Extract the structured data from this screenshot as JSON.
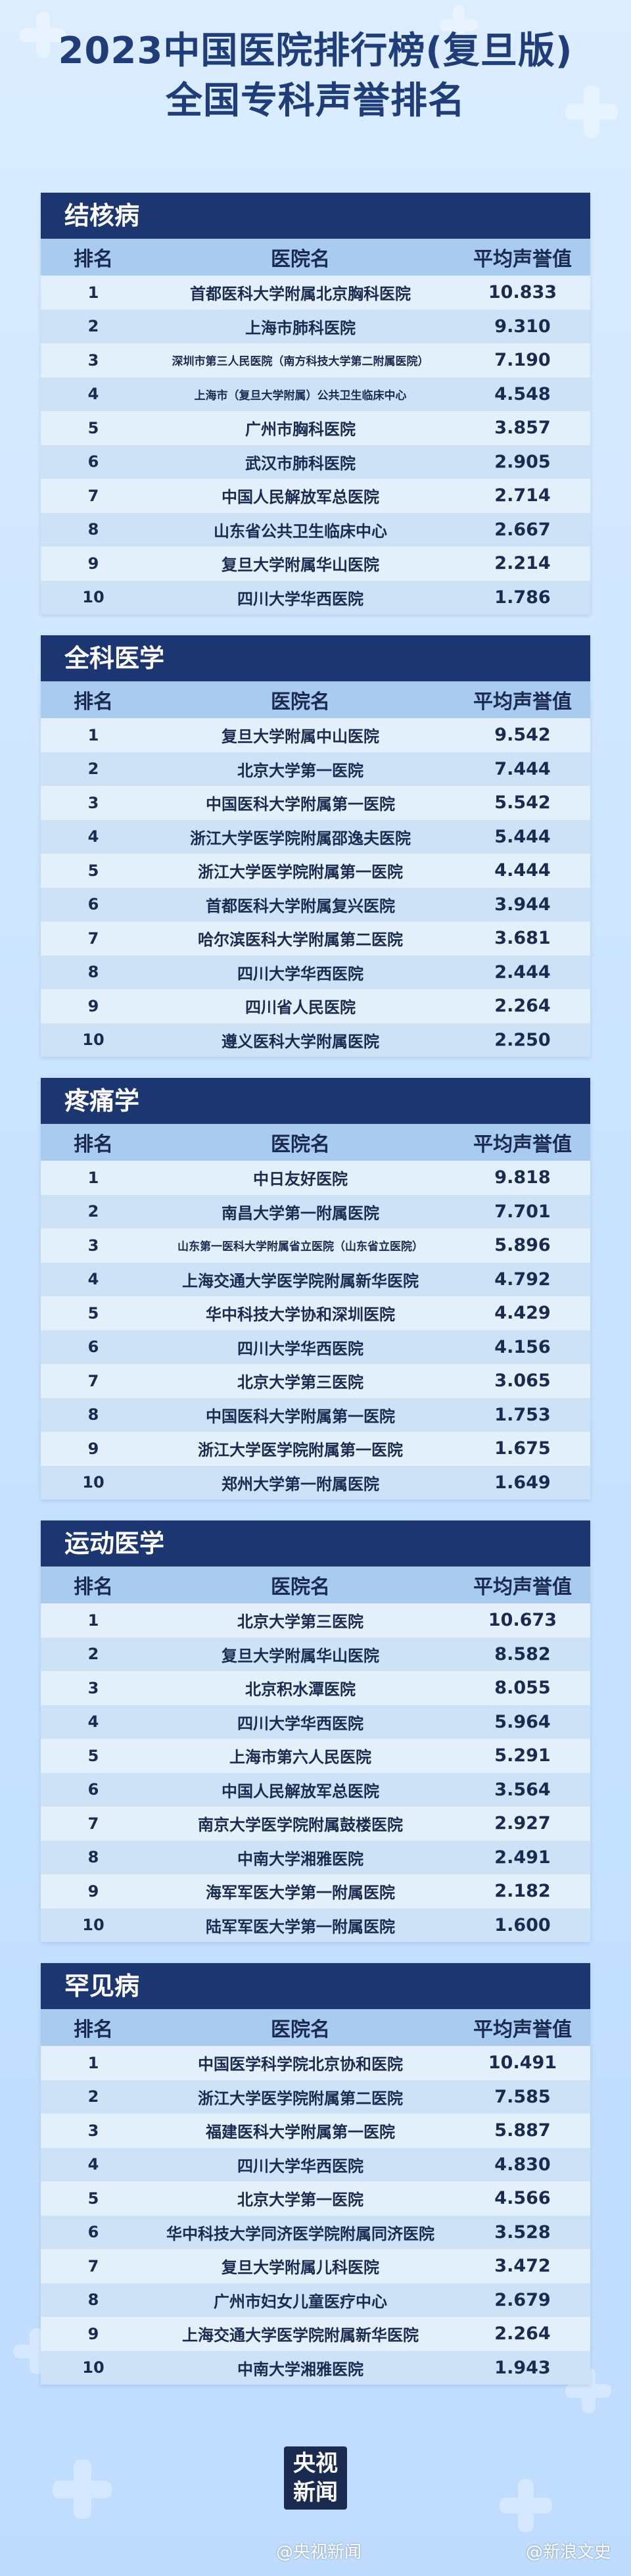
{
  "header": {
    "line1": "2023中国医院排行榜(复旦版)",
    "line2": "全国专科声誉排名"
  },
  "columns": {
    "rank": "排名",
    "hospital": "医院名",
    "score": "平均声誉值"
  },
  "sections": [
    {
      "title": "结核病",
      "rows": [
        {
          "rank": "1",
          "hospital": "首都医科大学附属北京胸科医院",
          "score": "10.833"
        },
        {
          "rank": "2",
          "hospital": "上海市肺科医院",
          "score": "9.310"
        },
        {
          "rank": "3",
          "hospital": "深圳市第三人民医院（南方科技大学第二附属医院）",
          "score": "7.190"
        },
        {
          "rank": "4",
          "hospital": "上海市（复旦大学附属）公共卫生临床中心",
          "score": "4.548"
        },
        {
          "rank": "5",
          "hospital": "广州市胸科医院",
          "score": "3.857"
        },
        {
          "rank": "6",
          "hospital": "武汉市肺科医院",
          "score": "2.905"
        },
        {
          "rank": "7",
          "hospital": "中国人民解放军总医院",
          "score": "2.714"
        },
        {
          "rank": "8",
          "hospital": "山东省公共卫生临床中心",
          "score": "2.667"
        },
        {
          "rank": "9",
          "hospital": "复旦大学附属华山医院",
          "score": "2.214"
        },
        {
          "rank": "10",
          "hospital": "四川大学华西医院",
          "score": "1.786"
        }
      ]
    },
    {
      "title": "全科医学",
      "rows": [
        {
          "rank": "1",
          "hospital": "复旦大学附属中山医院",
          "score": "9.542"
        },
        {
          "rank": "2",
          "hospital": "北京大学第一医院",
          "score": "7.444"
        },
        {
          "rank": "3",
          "hospital": "中国医科大学附属第一医院",
          "score": "5.542"
        },
        {
          "rank": "4",
          "hospital": "浙江大学医学院附属邵逸夫医院",
          "score": "5.444"
        },
        {
          "rank": "5",
          "hospital": "浙江大学医学院附属第一医院",
          "score": "4.444"
        },
        {
          "rank": "6",
          "hospital": "首都医科大学附属复兴医院",
          "score": "3.944"
        },
        {
          "rank": "7",
          "hospital": "哈尔滨医科大学附属第二医院",
          "score": "3.681"
        },
        {
          "rank": "8",
          "hospital": "四川大学华西医院",
          "score": "2.444"
        },
        {
          "rank": "9",
          "hospital": "四川省人民医院",
          "score": "2.264"
        },
        {
          "rank": "10",
          "hospital": "遵义医科大学附属医院",
          "score": "2.250"
        }
      ]
    },
    {
      "title": "疼痛学",
      "rows": [
        {
          "rank": "1",
          "hospital": "中日友好医院",
          "score": "9.818"
        },
        {
          "rank": "2",
          "hospital": "南昌大学第一附属医院",
          "score": "7.701"
        },
        {
          "rank": "3",
          "hospital": "山东第一医科大学附属省立医院（山东省立医院）",
          "score": "5.896"
        },
        {
          "rank": "4",
          "hospital": "上海交通大学医学院附属新华医院",
          "score": "4.792"
        },
        {
          "rank": "5",
          "hospital": "华中科技大学协和深圳医院",
          "score": "4.429"
        },
        {
          "rank": "6",
          "hospital": "四川大学华西医院",
          "score": "4.156"
        },
        {
          "rank": "7",
          "hospital": "北京大学第三医院",
          "score": "3.065"
        },
        {
          "rank": "8",
          "hospital": "中国医科大学附属第一医院",
          "score": "1.753"
        },
        {
          "rank": "9",
          "hospital": "浙江大学医学院附属第一医院",
          "score": "1.675"
        },
        {
          "rank": "10",
          "hospital": "郑州大学第一附属医院",
          "score": "1.649"
        }
      ]
    },
    {
      "title": "运动医学",
      "rows": [
        {
          "rank": "1",
          "hospital": "北京大学第三医院",
          "score": "10.673"
        },
        {
          "rank": "2",
          "hospital": "复旦大学附属华山医院",
          "score": "8.582"
        },
        {
          "rank": "3",
          "hospital": "北京积水潭医院",
          "score": "8.055"
        },
        {
          "rank": "4",
          "hospital": "四川大学华西医院",
          "score": "5.964"
        },
        {
          "rank": "5",
          "hospital": "上海市第六人民医院",
          "score": "5.291"
        },
        {
          "rank": "6",
          "hospital": "中国人民解放军总医院",
          "score": "3.564"
        },
        {
          "rank": "7",
          "hospital": "南京大学医学院附属鼓楼医院",
          "score": "2.927"
        },
        {
          "rank": "8",
          "hospital": "中南大学湘雅医院",
          "score": "2.491"
        },
        {
          "rank": "9",
          "hospital": "海军军医大学第一附属医院",
          "score": "2.182"
        },
        {
          "rank": "10",
          "hospital": "陆军军医大学第一附属医院",
          "score": "1.600"
        }
      ]
    },
    {
      "title": "罕见病",
      "rows": [
        {
          "rank": "1",
          "hospital": "中国医学科学院北京协和医院",
          "score": "10.491"
        },
        {
          "rank": "2",
          "hospital": "浙江大学医学院附属第二医院",
          "score": "7.585"
        },
        {
          "rank": "3",
          "hospital": "福建医科大学附属第一医院",
          "score": "5.887"
        },
        {
          "rank": "4",
          "hospital": "四川大学华西医院",
          "score": "4.830"
        },
        {
          "rank": "5",
          "hospital": "北京大学第一医院",
          "score": "4.566"
        },
        {
          "rank": "6",
          "hospital": "华中科技大学同济医学院附属同济医院",
          "score": "3.528"
        },
        {
          "rank": "7",
          "hospital": "复旦大学附属儿科医院",
          "score": "3.472"
        },
        {
          "rank": "8",
          "hospital": "广州市妇女儿童医疗中心",
          "score": "2.679"
        },
        {
          "rank": "9",
          "hospital": "上海交通大学医学院附属新华医院",
          "score": "2.264"
        },
        {
          "rank": "10",
          "hospital": "中南大学湘雅医院",
          "score": "1.943"
        }
      ]
    }
  ],
  "logo": {
    "line1": "央视",
    "line2": "新闻"
  },
  "watermarks": {
    "left": "@央视新闻",
    "right": "@新浪文史"
  }
}
